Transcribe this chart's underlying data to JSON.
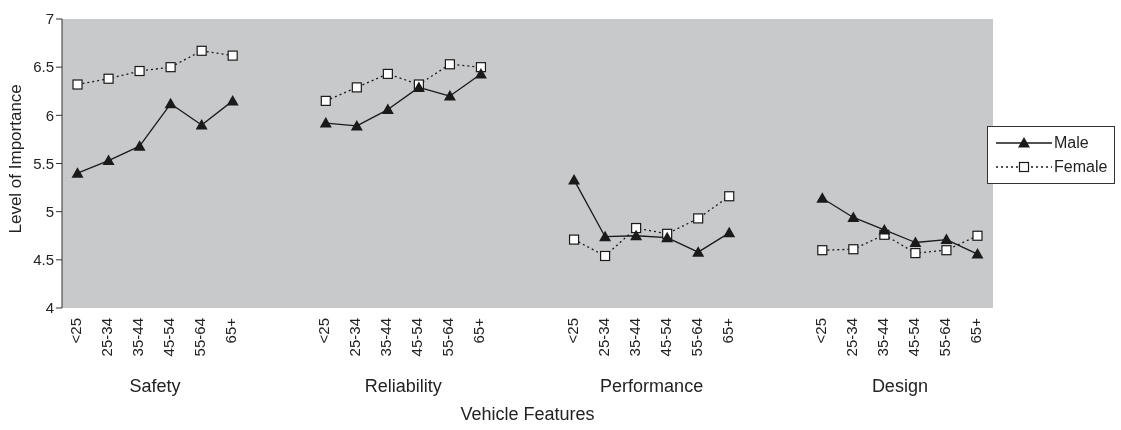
{
  "chart_data": {
    "type": "line",
    "xlabel": "Vehicle Features",
    "ylabel": "Level of Importance",
    "categories": [
      "<25",
      "25-34",
      "35-44",
      "45-54",
      "55-64",
      "65+",
      null,
      null,
      "<25",
      "25-34",
      "35-44",
      "45-54",
      "55-64",
      "65+",
      null,
      null,
      "<25",
      "25-34",
      "35-44",
      "45-54",
      "55-64",
      "65+",
      null,
      null,
      "<25",
      "25-34",
      "35-44",
      "45-54",
      "55-64",
      "65+"
    ],
    "series": [
      {
        "name": "Male",
        "color": "#1a1a1a",
        "marker": "triangle",
        "line_style": "solid",
        "values": [
          5.4,
          5.53,
          5.68,
          6.12,
          5.9,
          6.15,
          null,
          null,
          5.92,
          5.89,
          6.06,
          6.29,
          6.2,
          6.43,
          null,
          null,
          5.33,
          4.74,
          4.75,
          4.73,
          4.58,
          4.78,
          null,
          null,
          5.14,
          4.94,
          4.81,
          4.68,
          4.71,
          4.56
        ]
      },
      {
        "name": "Female",
        "color": "#1a1a1a",
        "marker": "square",
        "line_style": "dotted",
        "values": [
          6.32,
          6.38,
          6.46,
          6.5,
          6.67,
          6.62,
          null,
          null,
          6.15,
          6.29,
          6.43,
          6.32,
          6.53,
          6.5,
          null,
          null,
          4.71,
          4.54,
          4.83,
          4.77,
          4.93,
          5.16,
          null,
          null,
          4.6,
          4.61,
          4.76,
          4.57,
          4.6,
          4.75
        ]
      }
    ],
    "annotations": [
      "Safety",
      "Reliability",
      "Performance",
      "Design"
    ],
    "ylim": [
      4,
      7
    ],
    "yticks": [
      4,
      4.5,
      5,
      5.5,
      6,
      6.5,
      7
    ],
    "grid": false,
    "legend": "right"
  }
}
